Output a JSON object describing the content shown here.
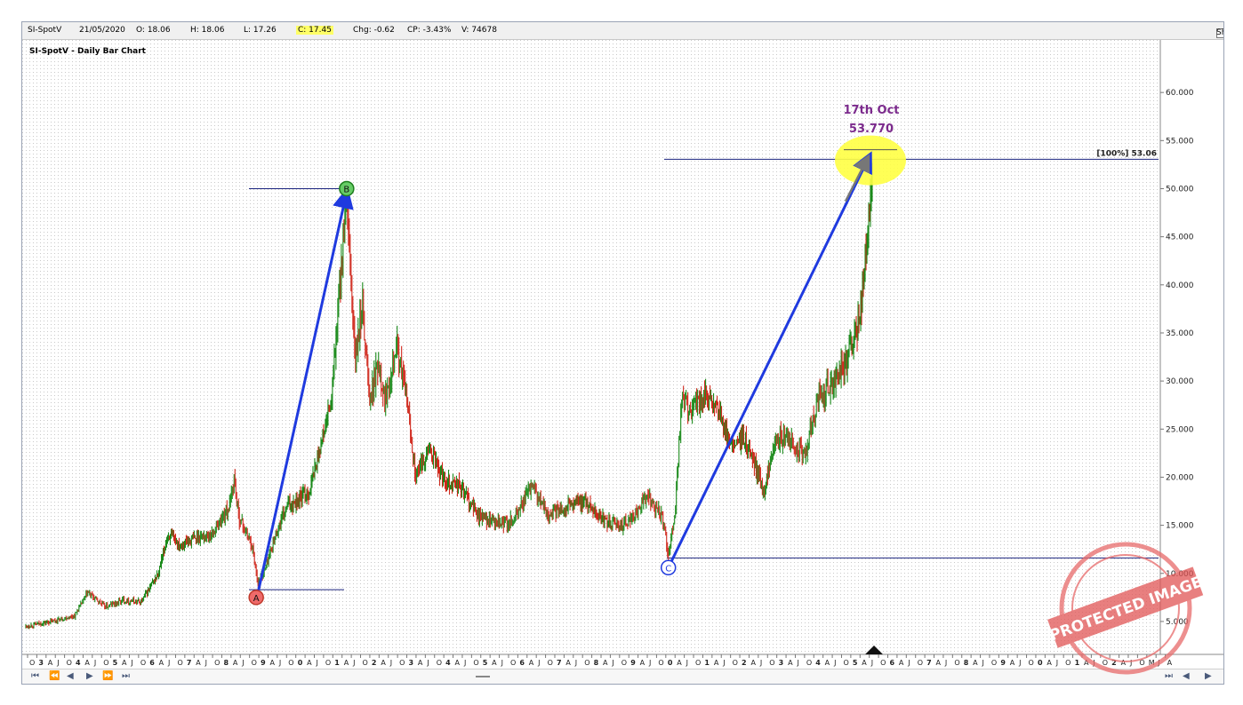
{
  "infobar": {
    "symbol": "SI-SpotV",
    "date": "21/05/2020",
    "open": "O: 18.06",
    "high": "H: 18.06",
    "low": "L: 17.26",
    "close": "C: 17.45",
    "change": "Chg: -0.62",
    "change_pct": "CP: -3.43%",
    "volume": "V: 74678",
    "show_last": "Show Last"
  },
  "chart_title": "SI-SpotV - Daily Bar Chart",
  "colors": {
    "up_bar": "#1a8a1a",
    "down_bar": "#d0281c",
    "wave_line": "#1f3adf",
    "level_line": "#1a237e",
    "highlight": "#ffff44",
    "annotation": "#7b2a8c"
  },
  "annotations": {
    "peak_date": "17th Oct",
    "peak_value": "53.770",
    "level_label": "[100%] 53.06",
    "point_a": "A",
    "point_b": "B",
    "point_c": "C"
  },
  "stamp_text": "PROTECTED IMAGE",
  "icons": [
    "first-icon",
    "prev-fast-icon",
    "prev-icon",
    "next-icon",
    "next-fast-icon",
    "last-icon"
  ],
  "chart_data": {
    "type": "bar",
    "title": "SI-SpotV - Daily Bar Chart",
    "y_axis_side": "right",
    "ylim": [
      2.5,
      65
    ],
    "yticks": [
      "5.000",
      "10.000",
      "15.000",
      "20.000",
      "25.000",
      "30.000",
      "35.000",
      "40.000",
      "45.000",
      "50.000",
      "55.000",
      "60.000"
    ],
    "x_ticks": [
      "O",
      "3",
      "A",
      "J",
      "O",
      "4",
      "A",
      "J",
      "O",
      "5",
      "A",
      "J",
      "O",
      "6",
      "A",
      "J",
      "O",
      "7",
      "A",
      "J",
      "O",
      "8",
      "A",
      "J",
      "O",
      "9",
      "A",
      "J",
      "O",
      "0",
      "A",
      "J",
      "O",
      "1",
      "A",
      "J",
      "O",
      "2",
      "A",
      "J",
      "O",
      "3",
      "A",
      "J",
      "O",
      "4",
      "A",
      "J",
      "O",
      "5",
      "A",
      "J",
      "O",
      "6",
      "A",
      "J",
      "O",
      "7",
      "A",
      "J",
      "O",
      "8",
      "A",
      "J",
      "O",
      "9",
      "A",
      "J",
      "O",
      "0",
      "A",
      "J",
      "O",
      "1",
      "A",
      "J",
      "O",
      "2",
      "A",
      "J",
      "O",
      "3",
      "A",
      "J",
      "O",
      "4",
      "A",
      "J",
      "O",
      "5",
      "A",
      "J",
      "O",
      "6",
      "A",
      "J",
      "O",
      "7",
      "A",
      "J",
      "O",
      "8",
      "A",
      "J",
      "O",
      "9",
      "A",
      "J",
      "O",
      "0",
      "A",
      "J",
      "O",
      "1",
      "A",
      "J",
      "O",
      "2",
      "A",
      "J",
      "O",
      "M",
      "J",
      "A"
    ],
    "price_path": [
      [
        0,
        4.5
      ],
      [
        30,
        5.0
      ],
      [
        55,
        5.6
      ],
      [
        70,
        8.0
      ],
      [
        90,
        6.5
      ],
      [
        110,
        7.2
      ],
      [
        130,
        7.0
      ],
      [
        150,
        10.0
      ],
      [
        160,
        14.0
      ],
      [
        175,
        13.0
      ],
      [
        195,
        13.8
      ],
      [
        210,
        14.0
      ],
      [
        230,
        17.0
      ],
      [
        235,
        20.0
      ],
      [
        240,
        16.0
      ],
      [
        255,
        13.0
      ],
      [
        262,
        9.0
      ],
      [
        270,
        10.5
      ],
      [
        282,
        14.0
      ],
      [
        295,
        17.0
      ],
      [
        320,
        18.5
      ],
      [
        345,
        28.0
      ],
      [
        358,
        45.0
      ],
      [
        362,
        48.0
      ],
      [
        372,
        32.0
      ],
      [
        380,
        38.0
      ],
      [
        388,
        28.0
      ],
      [
        398,
        32.0
      ],
      [
        405,
        28.0
      ],
      [
        418,
        34.0
      ],
      [
        430,
        28.0
      ],
      [
        440,
        20.0
      ],
      [
        455,
        23.0
      ],
      [
        470,
        20.0
      ],
      [
        490,
        19.0
      ],
      [
        510,
        16.0
      ],
      [
        535,
        15.0
      ],
      [
        550,
        15.5
      ],
      [
        570,
        19.0
      ],
      [
        590,
        16.0
      ],
      [
        610,
        17.0
      ],
      [
        630,
        17.5
      ],
      [
        660,
        15.0
      ],
      [
        680,
        15.2
      ],
      [
        700,
        18.0
      ],
      [
        718,
        16.0
      ],
      [
        725,
        11.6
      ],
      [
        732,
        16.0
      ],
      [
        740,
        28.0
      ],
      [
        750,
        27.0
      ],
      [
        765,
        28.5
      ],
      [
        780,
        27.0
      ],
      [
        795,
        23.0
      ],
      [
        810,
        24.0
      ],
      [
        823,
        21.0
      ],
      [
        833,
        18.5
      ],
      [
        845,
        24.0
      ],
      [
        860,
        24.0
      ],
      [
        878,
        22.0
      ],
      [
        895,
        28.5
      ],
      [
        912,
        30.0
      ],
      [
        925,
        32.0
      ],
      [
        940,
        36.0
      ],
      [
        950,
        45.0
      ],
      [
        955,
        53.77
      ]
    ],
    "series": [
      {
        "name": "A-B",
        "points": [
          [
            262,
            8.0
          ],
          [
            362,
            50.0
          ]
        ]
      },
      {
        "name": "C",
        "points": [
          [
            725,
            10.6
          ],
          [
            952,
            53.77
          ]
        ]
      }
    ],
    "horizontal_levels": [
      {
        "label": "[100%] 53.06",
        "value": 53.06
      },
      {
        "value": 50.0
      },
      {
        "value": 11.6
      },
      {
        "value": 8.3
      }
    ],
    "markers": [
      {
        "label": "A",
        "x": 260,
        "y": 7.5
      },
      {
        "label": "B",
        "x": 362,
        "y": 50.0
      },
      {
        "label": "C",
        "x": 725,
        "y": 10.6
      }
    ],
    "highlight": {
      "label": "17th Oct",
      "value": 53.77,
      "x": 953
    },
    "grid": true,
    "legend": "none"
  }
}
